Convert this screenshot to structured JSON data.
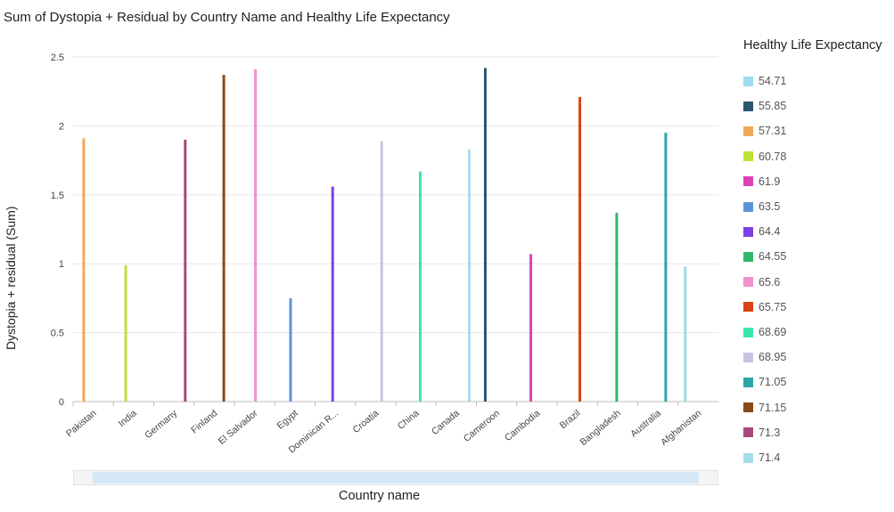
{
  "chart_data": {
    "type": "bar",
    "title": "Sum of Dystopia + Residual by Country Name and Healthy Life Expectancy",
    "xlabel": "Country name",
    "ylabel": "Dystopia + residual (Sum)",
    "ylim": [
      0,
      2.5
    ],
    "yticks": [
      "0",
      "0.5",
      "1",
      "1.5",
      "2",
      "2.5"
    ],
    "ytick_values": [
      0,
      0.5,
      1,
      1.5,
      2,
      2.5
    ],
    "grid": true,
    "legend_title": "Healthy Life Expectancy",
    "legend_position": "right",
    "categories": [
      "Pakistan",
      "India",
      "Germany",
      "Finland",
      "El Salvador",
      "Egypt",
      "Dominican R...",
      "Croatia",
      "China",
      "Canada",
      "Cameroon",
      "Cambodia",
      "Brazil",
      "Bangladesh",
      "Australia",
      "Afghanistan"
    ],
    "legend": [
      {
        "name": "54.71",
        "color": "#9ddbec"
      },
      {
        "name": "55.85",
        "color": "#2a5570"
      },
      {
        "name": "57.31",
        "color": "#f2a85a"
      },
      {
        "name": "60.78",
        "color": "#bde03a"
      },
      {
        "name": "61.9",
        "color": "#e040b8"
      },
      {
        "name": "63.5",
        "color": "#5d94d8"
      },
      {
        "name": "64.4",
        "color": "#7d3fe6"
      },
      {
        "name": "64.55",
        "color": "#30b869"
      },
      {
        "name": "65.6",
        "color": "#ec93cd"
      },
      {
        "name": "65.75",
        "color": "#d84315"
      },
      {
        "name": "68.69",
        "color": "#3be5a9"
      },
      {
        "name": "68.95",
        "color": "#c4c4e2"
      },
      {
        "name": "71.05",
        "color": "#2aa6a8"
      },
      {
        "name": "71.15",
        "color": "#8b4a16"
      },
      {
        "name": "71.3",
        "color": "#a84a7a"
      },
      {
        "name": "71.4",
        "color": "#a8dcea"
      }
    ],
    "bars": [
      {
        "country": "Pakistan",
        "series": "57.31",
        "value": 1.91
      },
      {
        "country": "India",
        "series": "60.78",
        "value": 0.99
      },
      {
        "country": "Germany",
        "series": "71.3",
        "value": 1.9
      },
      {
        "country": "Finland",
        "series": "71.15",
        "value": 2.37
      },
      {
        "country": "El Salvador",
        "series": "65.6",
        "value": 2.41
      },
      {
        "country": "Egypt",
        "series": "63.5",
        "value": 0.75
      },
      {
        "country": "Dominican R...",
        "series": "64.4",
        "value": 1.56
      },
      {
        "country": "Croatia",
        "series": "68.95",
        "value": 1.89
      },
      {
        "country": "China",
        "series": "68.69",
        "value": 1.67
      },
      {
        "country": "Canada",
        "series": "71.4",
        "value": 1.83
      },
      {
        "country": "Cameroon",
        "series": "55.85",
        "value": 2.42
      },
      {
        "country": "Cambodia",
        "series": "61.9",
        "value": 1.07
      },
      {
        "country": "Brazil",
        "series": "65.75",
        "value": 2.21
      },
      {
        "country": "Bangladesh",
        "series": "64.55",
        "value": 1.37
      },
      {
        "country": "Australia",
        "series": "71.05",
        "value": 1.95
      },
      {
        "country": "Afghanistan",
        "series": "54.71",
        "value": 0.98
      }
    ]
  }
}
